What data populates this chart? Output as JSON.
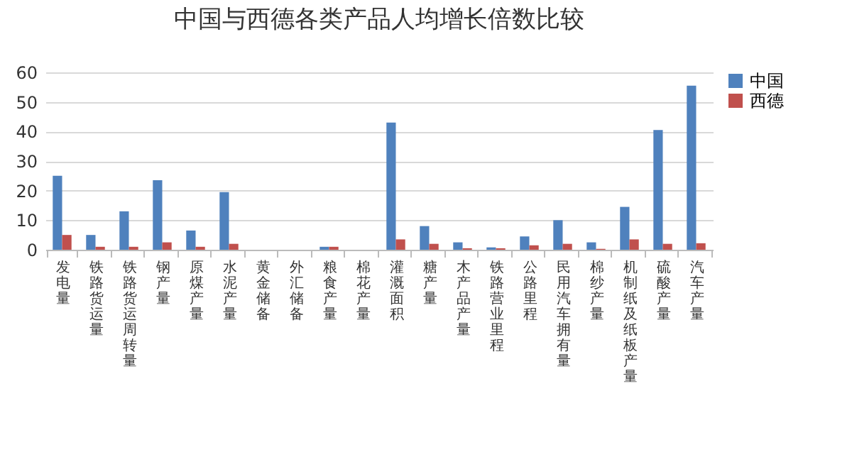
{
  "chart_data": {
    "type": "bar",
    "title": "中国与西德各类产品人均增长倍数比较",
    "categories": [
      "发电量",
      "铁路货运量",
      "铁路货运周转量",
      "钢产量",
      "原煤产量",
      "水泥产量",
      "黄金储备",
      "外汇储备",
      "粮食产量",
      "棉花产量",
      "灌溉面积",
      "糖产量",
      "木产品产量",
      "铁路营业里程",
      "公路里程",
      "民用汽车拥有量",
      "棉纱产量",
      "机制纸及纸板产量",
      "硫酸产量",
      "汽车产量"
    ],
    "series": [
      {
        "name": "中国",
        "color": "#4f81bd",
        "values": [
          25,
          5,
          13,
          23.5,
          6.5,
          19.5,
          null,
          null,
          1,
          null,
          43,
          8,
          2.5,
          0.8,
          4.5,
          10,
          2.5,
          14.5,
          40.5,
          55.5
        ]
      },
      {
        "name": "西德",
        "color": "#c0504d",
        "values": [
          5,
          1,
          1,
          2.5,
          1,
          2,
          null,
          null,
          1,
          null,
          3.5,
          2,
          0.5,
          0.5,
          1.5,
          2,
          0.3,
          3.5,
          2,
          2.2
        ]
      }
    ],
    "ylim": [
      0,
      60
    ],
    "yticks": [
      0,
      10,
      20,
      30,
      40,
      50,
      60
    ],
    "grid": "y",
    "legend": "right"
  }
}
